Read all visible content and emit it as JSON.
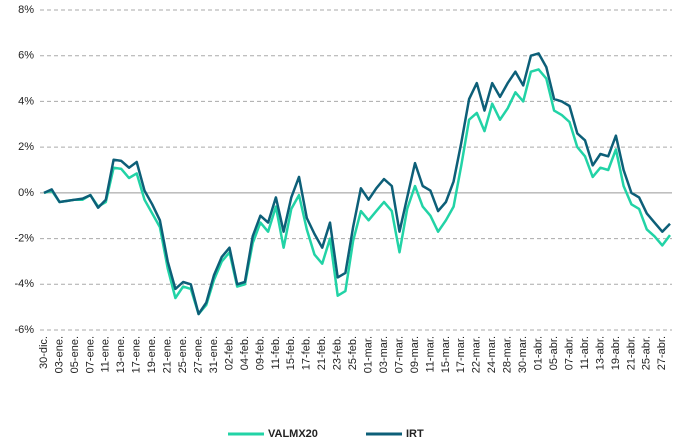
{
  "chart_data": {
    "type": "line",
    "categories": [
      "30-dic.",
      null,
      "03-ene.",
      null,
      "05-ene.",
      null,
      "07-ene.",
      null,
      "11-ene.",
      null,
      "13-ene.",
      null,
      "17-ene.",
      null,
      "19-ene.",
      null,
      "21-ene.",
      null,
      "25-ene.",
      null,
      "27-ene.",
      null,
      "31-ene.",
      null,
      "02-feb.",
      null,
      "04-feb.",
      null,
      "09-feb.",
      null,
      "11-feb.",
      null,
      "15-feb.",
      null,
      "17-feb.",
      null,
      "21-feb.",
      null,
      "23-feb.",
      null,
      "25-feb.",
      null,
      "01-mar.",
      null,
      "03-mar.",
      null,
      "07-mar.",
      null,
      "09-mar.",
      null,
      "11-mar.",
      null,
      "15-mar.",
      null,
      "17-mar.",
      null,
      "22-mar.",
      null,
      "24-mar.",
      null,
      "28-mar.",
      null,
      "30-mar.",
      null,
      "01-abr.",
      null,
      "05-abr.",
      null,
      "07-abr.",
      null,
      "11-abr.",
      null,
      "13-abr.",
      null,
      "19-abr.",
      null,
      "21-abr.",
      null,
      "25-abr.",
      null,
      "27-abr.",
      null
    ],
    "series": [
      {
        "name": "VALMX20",
        "color": "#22d3a6",
        "values": [
          0.0,
          0.1,
          -0.4,
          -0.35,
          -0.3,
          -0.3,
          -0.1,
          -0.6,
          -0.4,
          1.1,
          1.05,
          0.65,
          0.85,
          -0.3,
          -0.9,
          -1.5,
          -3.3,
          -4.6,
          -4.1,
          -4.2,
          -5.3,
          -4.9,
          -3.8,
          -3.0,
          -2.6,
          -4.1,
          -4.0,
          -2.2,
          -1.3,
          -1.7,
          -0.6,
          -2.4,
          -0.7,
          -0.1,
          -1.6,
          -2.7,
          -3.1,
          -2.0,
          -4.5,
          -4.3,
          -2.1,
          -0.8,
          -1.2,
          -0.8,
          -0.4,
          -0.8,
          -2.6,
          -0.7,
          0.3,
          -0.6,
          -1.0,
          -1.7,
          -1.2,
          -0.6,
          1.2,
          3.2,
          3.5,
          2.7,
          3.9,
          3.2,
          3.7,
          4.4,
          4.0,
          5.3,
          5.4,
          5.0,
          3.6,
          3.4,
          3.1,
          2.0,
          1.6,
          0.7,
          1.1,
          1.0,
          1.9,
          0.3,
          -0.5,
          -0.7,
          -1.6,
          -1.9,
          -2.3,
          -1.85
        ]
      },
      {
        "name": "IRT",
        "color": "#0d5f78",
        "values": [
          0.0,
          0.15,
          -0.4,
          -0.35,
          -0.3,
          -0.25,
          -0.1,
          -0.65,
          -0.3,
          1.45,
          1.4,
          1.1,
          1.35,
          0.1,
          -0.5,
          -1.2,
          -3.0,
          -4.2,
          -3.9,
          -4.0,
          -5.3,
          -4.8,
          -3.6,
          -2.8,
          -2.4,
          -4.0,
          -3.9,
          -1.9,
          -1.0,
          -1.3,
          -0.2,
          -1.7,
          -0.2,
          0.7,
          -1.1,
          -1.8,
          -2.4,
          -1.3,
          -3.7,
          -3.5,
          -1.5,
          0.2,
          -0.3,
          0.2,
          0.6,
          0.3,
          -1.7,
          -0.2,
          1.3,
          0.3,
          0.1,
          -0.8,
          -0.4,
          0.5,
          2.2,
          4.1,
          4.8,
          3.6,
          4.8,
          4.2,
          4.8,
          5.3,
          4.7,
          6.0,
          6.1,
          5.5,
          4.1,
          4.0,
          3.8,
          2.6,
          2.3,
          1.2,
          1.7,
          1.6,
          2.5,
          1.0,
          0.0,
          -0.2,
          -0.9,
          -1.3,
          -1.7,
          -1.35
        ]
      }
    ],
    "ylim": [
      -6,
      8
    ],
    "yticks": [
      {
        "value": -6,
        "label": "-6%"
      },
      {
        "value": -4,
        "label": "-4%"
      },
      {
        "value": -2,
        "label": "-2%"
      },
      {
        "value": 0,
        "label": "0%"
      },
      {
        "value": 2,
        "label": "2%"
      },
      {
        "value": 4,
        "label": "4%"
      },
      {
        "value": 6,
        "label": "6%"
      },
      {
        "value": 8,
        "label": "8%"
      }
    ],
    "grid": true,
    "legend": "bottom"
  }
}
